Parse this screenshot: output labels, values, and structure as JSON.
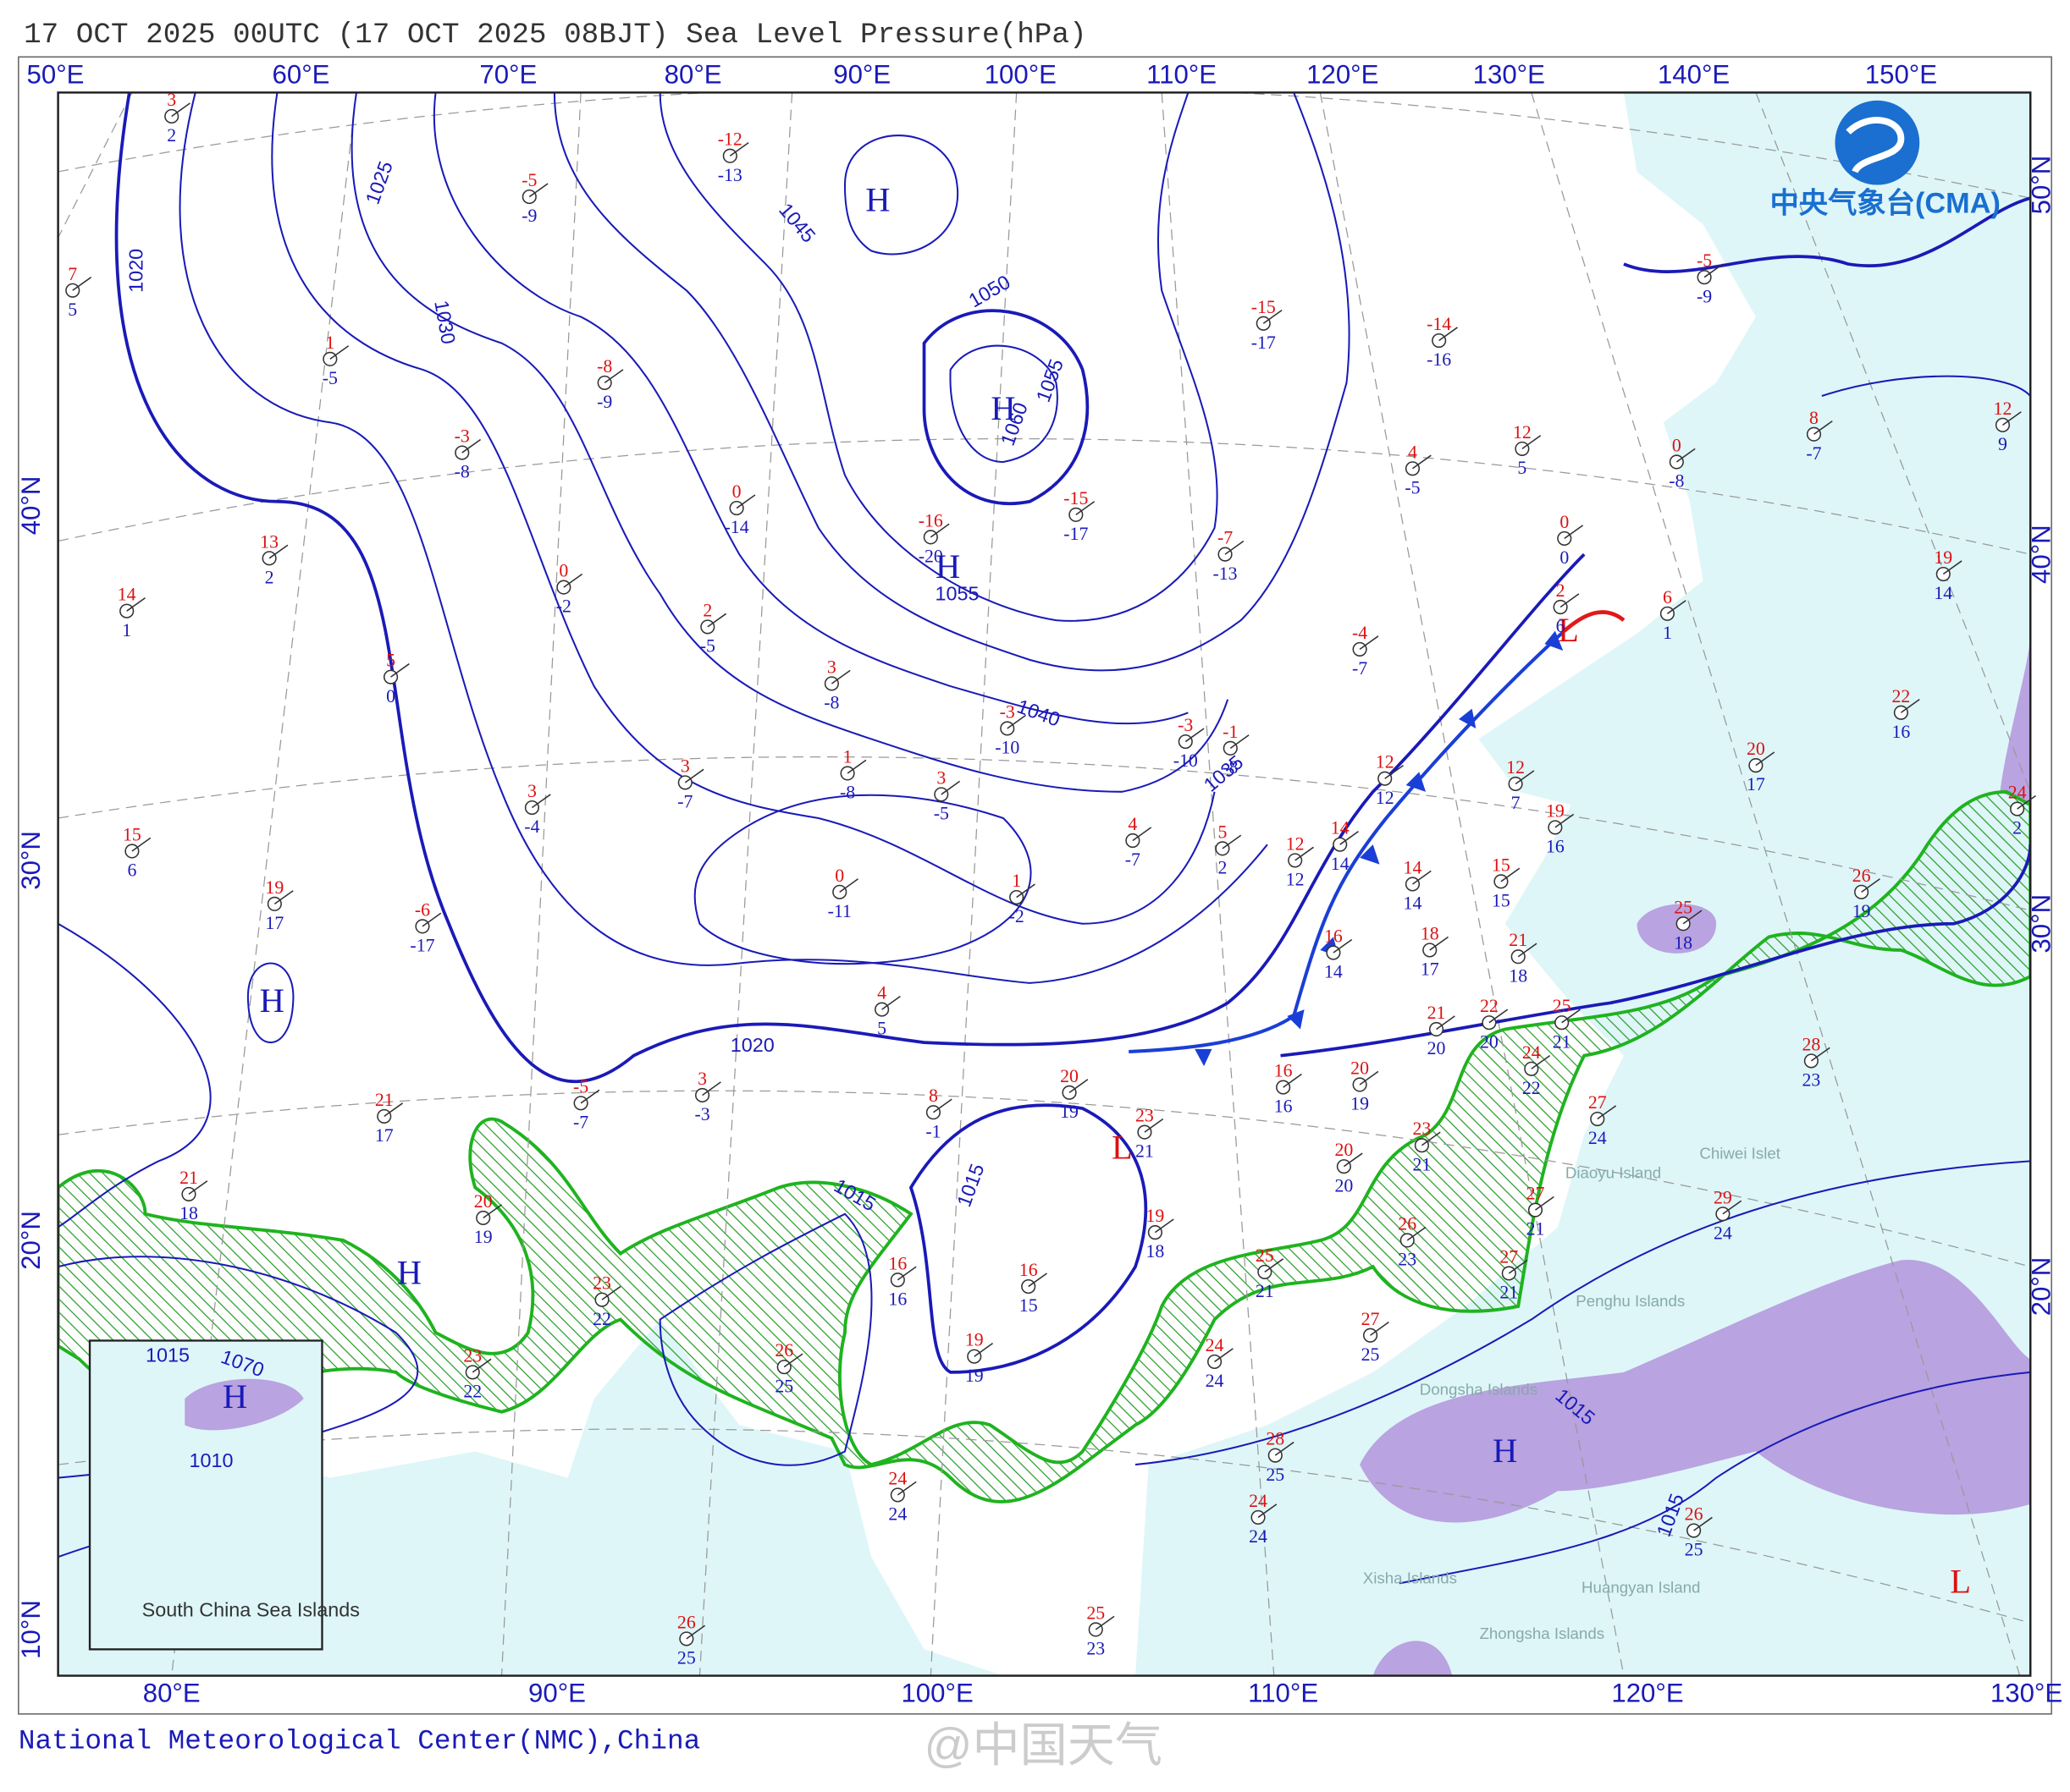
{
  "header": {
    "title": "17 OCT 2025 00UTC  (17 OCT 2025 08BJT) Sea Level Pressure(hPa)"
  },
  "logo": {
    "text": "中央气象台(CMA)"
  },
  "footer": {
    "credit": "National Meteorological Center(NMC),China",
    "watermark": "@中国天气"
  },
  "map": {
    "top_lon_labels": [
      "50°E",
      "60°E",
      "70°E",
      "80°E",
      "90°E",
      "100°E",
      "110°E",
      "120°E",
      "130°E",
      "140°E",
      "150°E"
    ],
    "bottom_lon_labels": [
      "80°E",
      "90°E",
      "100°E",
      "110°E",
      "120°E",
      "130°E"
    ],
    "left_lat_labels": [
      "40°N",
      "30°N",
      "20°N",
      "10°N"
    ],
    "right_lat_labels": [
      "50°N",
      "40°N",
      "30°N",
      "20°N"
    ],
    "isobar_labels": [
      "1020",
      "1025",
      "1030",
      "1045",
      "1050",
      "1055",
      "1060",
      "1055",
      "1040",
      "1035",
      "1020",
      "1015",
      "1015",
      "1015",
      "1015",
      "1010",
      "1015",
      "1070"
    ],
    "pressure_centers": [
      "H",
      "H",
      "H",
      "H",
      "H",
      "H",
      "H",
      "L",
      "L",
      "L"
    ],
    "place_labels": [
      "Chiwei Islet",
      "Diaoyu Island",
      "Penghu Islands",
      "Dongsha Islands",
      "Xisha Islands",
      "Huangyan Island",
      "Zhongsha Islands"
    ],
    "inset_label": "South China Sea Islands",
    "stations": [
      {
        "temperature": 3,
        "dew_point": 2
      },
      {
        "temperature": 7,
        "dew_point": 5
      },
      {
        "temperature": 1,
        "dew_point": -5
      },
      {
        "temperature": -5,
        "dew_point": -9
      },
      {
        "temperature": -8,
        "dew_point": -9
      },
      {
        "temperature": -3,
        "dew_point": -8
      },
      {
        "temperature": 13,
        "dew_point": 2
      },
      {
        "temperature": 14,
        "dew_point": 1
      },
      {
        "temperature": 0,
        "dew_point": -2
      },
      {
        "temperature": 5,
        "dew_point": 0
      },
      {
        "temperature": 2,
        "dew_point": -5
      },
      {
        "temperature": 0,
        "dew_point": -14
      },
      {
        "temperature": -12,
        "dew_point": -13
      },
      {
        "temperature": -16,
        "dew_point": -20
      },
      {
        "temperature": -15,
        "dew_point": -17
      },
      {
        "temperature": -15,
        "dew_point": -17
      },
      {
        "temperature": -7,
        "dew_point": -13
      },
      {
        "temperature": -14,
        "dew_point": -16
      },
      {
        "temperature": 3,
        "dew_point": -8
      },
      {
        "temperature": -3,
        "dew_point": -10
      },
      {
        "temperature": -3,
        "dew_point": -10
      },
      {
        "temperature": 1,
        "dew_point": -8
      },
      {
        "temperature": 3,
        "dew_point": -5
      },
      {
        "temperature": 3,
        "dew_point": -7
      },
      {
        "temperature": 3,
        "dew_point": -4
      },
      {
        "temperature": 15,
        "dew_point": 6
      },
      {
        "temperature": 19,
        "dew_point": 17
      },
      {
        "temperature": -6,
        "dew_point": -17
      },
      {
        "temperature": 0,
        "dew_point": -11
      },
      {
        "temperature": 4,
        "dew_point": -7
      },
      {
        "temperature": 1,
        "dew_point": -2
      },
      {
        "temperature": 4,
        "dew_point": 5
      },
      {
        "temperature": 21,
        "dew_point": 17
      },
      {
        "temperature": 21,
        "dew_point": 18
      },
      {
        "temperature": -5,
        "dew_point": -7
      },
      {
        "temperature": 3,
        "dew_point": -3
      },
      {
        "temperature": 8,
        "dew_point": -1
      },
      {
        "temperature": 20,
        "dew_point": 19
      },
      {
        "temperature": 23,
        "dew_point": 21
      },
      {
        "temperature": 16,
        "dew_point": 16
      },
      {
        "temperature": 20,
        "dew_point": 19
      },
      {
        "temperature": 20,
        "dew_point": 20
      },
      {
        "temperature": 19,
        "dew_point": 18
      },
      {
        "temperature": 16,
        "dew_point": 16
      },
      {
        "temperature": 16,
        "dew_point": 15
      },
      {
        "temperature": 19,
        "dew_point": 19
      },
      {
        "temperature": 26,
        "dew_point": 25
      },
      {
        "temperature": 24,
        "dew_point": 24
      },
      {
        "temperature": 20,
        "dew_point": 19
      },
      {
        "temperature": 23,
        "dew_point": 22
      },
      {
        "temperature": 23,
        "dew_point": 22
      },
      {
        "temperature": 26,
        "dew_point": 25
      },
      {
        "temperature": 25,
        "dew_point": 23
      },
      {
        "temperature": 24,
        "dew_point": 24
      },
      {
        "temperature": 25,
        "dew_point": 21
      },
      {
        "temperature": 28,
        "dew_point": 25
      },
      {
        "temperature": 24,
        "dew_point": 24
      },
      {
        "temperature": 27,
        "dew_point": 25
      },
      {
        "temperature": 26,
        "dew_point": 23
      },
      {
        "temperature": 23,
        "dew_point": 21
      },
      {
        "temperature": 21,
        "dew_point": 20
      },
      {
        "temperature": 22,
        "dew_point": 20
      },
      {
        "temperature": 24,
        "dew_point": 22
      },
      {
        "temperature": 25,
        "dew_point": 21
      },
      {
        "temperature": 27,
        "dew_point": 24
      },
      {
        "temperature": 27,
        "dew_point": 21
      },
      {
        "temperature": 27,
        "dew_point": 21
      },
      {
        "temperature": 21,
        "dew_point": 18
      },
      {
        "temperature": 18,
        "dew_point": 17
      },
      {
        "temperature": 16,
        "dew_point": 14
      },
      {
        "temperature": 14,
        "dew_point": 14
      },
      {
        "temperature": 14,
        "dew_point": 14
      },
      {
        "temperature": 12,
        "dew_point": 12
      },
      {
        "temperature": 12,
        "dew_point": 12
      },
      {
        "temperature": 15,
        "dew_point": 15
      },
      {
        "temperature": 12,
        "dew_point": 7
      },
      {
        "temperature": 19,
        "dew_point": 16
      },
      {
        "temperature": 25,
        "dew_point": 18
      },
      {
        "temperature": 20,
        "dew_point": 17
      },
      {
        "temperature": 22,
        "dew_point": 16
      },
      {
        "temperature": 26,
        "dew_point": 19
      },
      {
        "temperature": 19,
        "dew_point": 14
      },
      {
        "temperature": 8,
        "dew_point": -7
      },
      {
        "temperature": 12,
        "dew_point": 9
      },
      {
        "temperature": -5,
        "dew_point": -9
      },
      {
        "temperature": 0,
        "dew_point": -8
      },
      {
        "temperature": 6,
        "dew_point": 1
      },
      {
        "temperature": 12,
        "dew_point": 5
      },
      {
        "temperature": 4,
        "dew_point": -5
      },
      {
        "temperature": -4,
        "dew_point": -7
      },
      {
        "temperature": 0,
        "dew_point": 0
      },
      {
        "temperature": 2,
        "dew_point": 6
      },
      {
        "temperature": -1,
        "dew_point": -8
      },
      {
        "temperature": 5,
        "dew_point": 2
      },
      {
        "temperature": 28,
        "dew_point": 23
      },
      {
        "temperature": 29,
        "dew_point": 24
      },
      {
        "temperature": 26,
        "dew_point": 25
      },
      {
        "temperature": 24,
        "dew_point": 2
      }
    ]
  }
}
